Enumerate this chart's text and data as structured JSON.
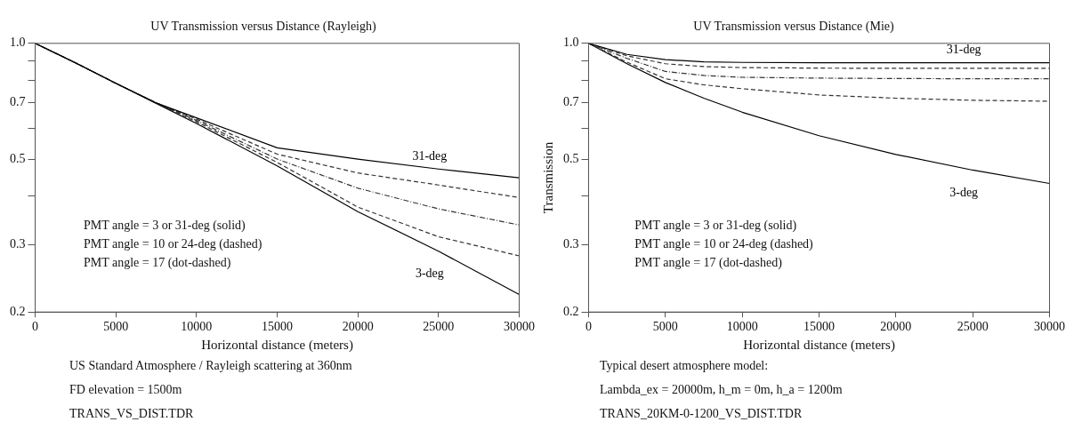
{
  "chart_data": [
    {
      "type": "line",
      "title": "UV Transmission versus Distance (Rayleigh)",
      "xlabel": "Horizontal distance (meters)",
      "x": [
        0,
        2500,
        5000,
        7500,
        10000,
        15000,
        20000,
        25000,
        30000
      ],
      "log": "y",
      "grid": false,
      "legend": false,
      "marker": "none",
      "xlim": [
        0,
        30000
      ],
      "xticks": [
        0,
        5000,
        10000,
        15000,
        20000,
        25000,
        30000
      ],
      "ylim": [
        0.2,
        1.0
      ],
      "yticks": [
        0.2,
        0.3,
        {
          "value": 0.4,
          "label": null
        },
        0.5,
        {
          "value": 0.6,
          "label": null
        },
        0.7,
        {
          "value": 0.8,
          "label": null
        },
        {
          "value": 0.9,
          "label": null
        },
        {
          "value": 1.0,
          "label": "1.0"
        }
      ],
      "series": [
        {
          "name": "31-deg",
          "color": "#000000",
          "line_style": "solid",
          "values": [
            1,
            0.89,
            0.787,
            0.7,
            0.64,
            0.535,
            0.5,
            0.471,
            0.447
          ]
        },
        {
          "color": "#333333",
          "line_style": "dashed",
          "values": [
            1,
            0.89,
            0.787,
            0.7,
            0.635,
            0.515,
            0.46,
            0.428,
            0.397
          ]
        },
        {
          "color": "#333333",
          "line_style": "dotted",
          "values": [
            1,
            0.89,
            0.787,
            0.7,
            0.63,
            0.5,
            0.42,
            0.371,
            0.337
          ]
        },
        {
          "color": "#333333",
          "line_style": "dashed",
          "values": [
            1,
            0.89,
            0.787,
            0.7,
            0.625,
            0.49,
            0.375,
            0.314,
            0.28
          ]
        },
        {
          "name": "3-deg",
          "color": "#000000",
          "line_style": "solid",
          "values": [
            1,
            0.89,
            0.787,
            0.698,
            0.619,
            0.48,
            0.365,
            0.288,
            0.222
          ]
        }
      ],
      "annotations": [
        "PMT angle = 3 or 31-deg (solid)",
        "PMT angle = 10 or 24-deg (dashed)",
        "PMT angle = 17 (dot-dashed)",
        "US Standard Atmosphere / Rayleigh scattering at 360nm",
        "FD elevation = 1500m",
        "TRANS_VS_DIST.TDR"
      ]
    },
    {
      "type": "line",
      "title": "UV Transmission versus Distance (Mie)",
      "xlabel": "Horizontal distance (meters)",
      "ylabel": "Transmission",
      "x": [
        0,
        2500,
        5000,
        7500,
        10000,
        15000,
        20000,
        25000,
        30000
      ],
      "log": "y",
      "grid": false,
      "legend": false,
      "marker": "none",
      "xlim": [
        0,
        30000
      ],
      "xticks": [
        0,
        5000,
        10000,
        15000,
        20000,
        25000,
        30000
      ],
      "ylim": [
        0.2,
        1.0
      ],
      "yticks": [
        0.2,
        0.3,
        {
          "value": 0.4,
          "label": null
        },
        0.5,
        {
          "value": 0.6,
          "label": null
        },
        0.7,
        {
          "value": 0.8,
          "label": null
        },
        {
          "value": 0.9,
          "label": null
        },
        {
          "value": 1.0,
          "label": "1.0"
        }
      ],
      "series": [
        {
          "name": "31-deg",
          "color": "#000000",
          "line_style": "solid",
          "values": [
            1,
            0.936,
            0.907,
            0.895,
            0.892,
            0.89,
            0.89,
            0.89,
            0.89
          ]
        },
        {
          "color": "#333333",
          "line_style": "dashed",
          "values": [
            1,
            0.928,
            0.885,
            0.87,
            0.865,
            0.862,
            0.861,
            0.861,
            0.861
          ]
        },
        {
          "color": "#333333",
          "line_style": "dotted",
          "values": [
            1,
            0.914,
            0.845,
            0.825,
            0.816,
            0.812,
            0.81,
            0.809,
            0.809
          ]
        },
        {
          "color": "#333333",
          "line_style": "dashed",
          "values": [
            1,
            0.893,
            0.809,
            0.78,
            0.762,
            0.734,
            0.72,
            0.711,
            0.707
          ]
        },
        {
          "name": "3-deg",
          "color": "#000000",
          "line_style": "solid",
          "values": [
            1,
            0.885,
            0.791,
            0.72,
            0.662,
            0.575,
            0.514,
            0.468,
            0.432
          ]
        }
      ],
      "annotations": [
        "PMT angle = 3 or 31-deg (solid)",
        "PMT angle = 10 or 24-deg (dashed)",
        "PMT angle = 17 (dot-dashed)",
        "Typical desert atmosphere model:",
        "Lambda_ex = 20000m, h_m = 0m, h_a = 1200m",
        "TRANS_20KM-0-1200_VS_DIST.TDR"
      ]
    }
  ]
}
